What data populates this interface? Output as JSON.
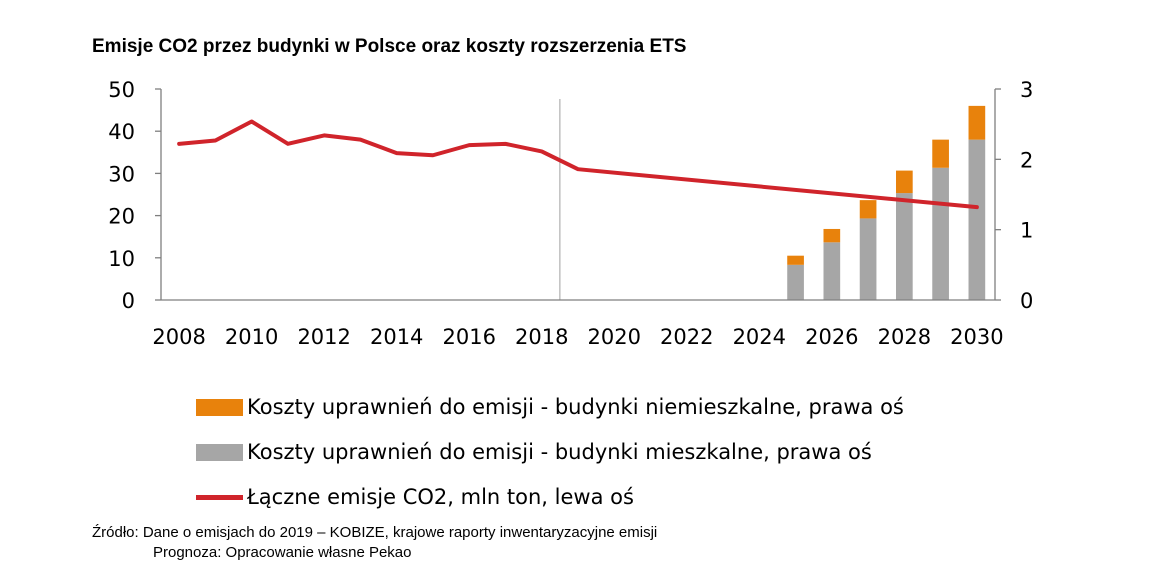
{
  "chart_data": {
    "type": "bar+line",
    "title": "Emisje CO2 przez budynki w Polsce oraz koszty rozszerzenia ETS",
    "x": [
      2008,
      2009,
      2010,
      2011,
      2012,
      2013,
      2014,
      2015,
      2016,
      2017,
      2018,
      2019,
      2020,
      2021,
      2022,
      2023,
      2024,
      2025,
      2026,
      2027,
      2028,
      2029,
      2030
    ],
    "x_tick_labels": [
      "2008",
      "2010",
      "2012",
      "2014",
      "2016",
      "2018",
      "2020",
      "2022",
      "2024",
      "2026",
      "2028",
      "2030"
    ],
    "y_left": {
      "lim": [
        0,
        50
      ],
      "ticks": [
        "0",
        "10",
        "20",
        "30",
        "40",
        "50"
      ]
    },
    "y_right": {
      "lim": [
        0,
        3
      ],
      "ticks": [
        "0",
        "1",
        "2",
        "3"
      ]
    },
    "divider_year": 2018.5,
    "grid": false,
    "legend_placement": "bottom",
    "series": [
      {
        "name": "Koszty uprawnień do emisji - budynki mieszkalne, prawa oś",
        "kind": "bar",
        "axis": "right",
        "stack": "costs",
        "color": "#a6a6a6",
        "x": [
          2025,
          2026,
          2027,
          2028,
          2029,
          2030
        ],
        "values": [
          0.5,
          0.82,
          1.16,
          1.52,
          1.88,
          2.28
        ]
      },
      {
        "name": "Koszty uprawnień do emisji - budynki niemieszkalne, prawa oś",
        "kind": "bar",
        "axis": "right",
        "stack": "costs",
        "color": "#e8820c",
        "x": [
          2025,
          2026,
          2027,
          2028,
          2029,
          2030
        ],
        "values": [
          0.13,
          0.19,
          0.26,
          0.32,
          0.4,
          0.48
        ]
      },
      {
        "name": "Łączne emisje CO2, mln ton, lewa oś",
        "kind": "line",
        "axis": "left",
        "color": "#d0242b",
        "x": [
          2008,
          2009,
          2010,
          2011,
          2012,
          2013,
          2014,
          2015,
          2016,
          2017,
          2018,
          2019,
          2030
        ],
        "values": [
          37.0,
          37.8,
          42.3,
          37.0,
          39.0,
          38.0,
          34.8,
          34.3,
          36.7,
          37.0,
          35.2,
          31.0,
          22.0
        ]
      }
    ]
  },
  "legend": [
    {
      "label": "Koszty uprawnień do emisji - budynki niemieszkalne, prawa oś",
      "color": "#e8820c",
      "kind": "box"
    },
    {
      "label": "Koszty uprawnień do emisji - budynki mieszkalne, prawa oś",
      "color": "#a6a6a6",
      "kind": "box"
    },
    {
      "label": "Łączne emisje CO2, mln ton, lewa oś",
      "color": "#d0242b",
      "kind": "line"
    }
  ],
  "source": {
    "line1": "Źródło: Dane o emisjach do 2019 – KOBIZE, krajowe raporty inwentaryzacyjne emisji",
    "line2": "Prognoza: Opracowanie własne Pekao"
  }
}
